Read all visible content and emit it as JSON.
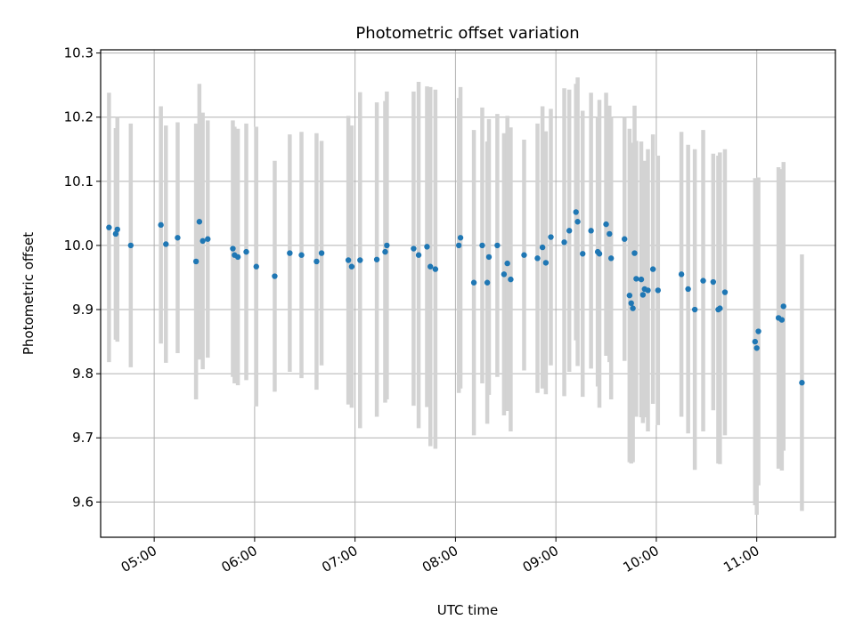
{
  "chart_data": {
    "type": "scatter",
    "title": "Photometric offset variation",
    "xlabel": "UTC time",
    "ylabel": "Photometric offset",
    "grid": true,
    "xlim": [
      "04:28",
      "11:47"
    ],
    "ylim": [
      9.545,
      10.305
    ],
    "xticks": [
      "05:00",
      "06:00",
      "07:00",
      "08:00",
      "09:00",
      "10:00",
      "11:00"
    ],
    "yticks": [
      "9.6",
      "9.7",
      "9.8",
      "9.9",
      "10.0",
      "10.1",
      "10.2",
      "10.3"
    ],
    "colors": {
      "points": "#1f77b4",
      "error_bars": "#d3d3d3",
      "grid": "#b0b0b0"
    },
    "points": [
      {
        "t": "04:33",
        "y": 10.028,
        "err": 0.21
      },
      {
        "t": "04:37",
        "y": 10.018,
        "err": 0.165
      },
      {
        "t": "04:38",
        "y": 10.025,
        "err": 0.175
      },
      {
        "t": "04:46",
        "y": 10.0,
        "err": 0.19
      },
      {
        "t": "05:04",
        "y": 10.032,
        "err": 0.185
      },
      {
        "t": "05:07",
        "y": 10.002,
        "err": 0.185
      },
      {
        "t": "05:14",
        "y": 10.012,
        "err": 0.18
      },
      {
        "t": "05:25",
        "y": 9.975,
        "err": 0.215
      },
      {
        "t": "05:27",
        "y": 10.037,
        "err": 0.215
      },
      {
        "t": "05:29",
        "y": 10.007,
        "err": 0.2
      },
      {
        "t": "05:32",
        "y": 10.01,
        "err": 0.185
      },
      {
        "t": "05:47",
        "y": 9.995,
        "err": 0.2
      },
      {
        "t": "05:48",
        "y": 9.985,
        "err": 0.2
      },
      {
        "t": "05:50",
        "y": 9.982,
        "err": 0.2
      },
      {
        "t": "05:55",
        "y": 9.99,
        "err": 0.2
      },
      {
        "t": "06:01",
        "y": 9.967,
        "err": 0.218
      },
      {
        "t": "06:12",
        "y": 9.952,
        "err": 0.18
      },
      {
        "t": "06:21",
        "y": 9.988,
        "err": 0.185
      },
      {
        "t": "06:28",
        "y": 9.985,
        "err": 0.192
      },
      {
        "t": "06:37",
        "y": 9.975,
        "err": 0.2
      },
      {
        "t": "06:40",
        "y": 9.988,
        "err": 0.175
      },
      {
        "t": "06:56",
        "y": 9.977,
        "err": 0.225
      },
      {
        "t": "06:58",
        "y": 9.967,
        "err": 0.22
      },
      {
        "t": "07:03",
        "y": 9.977,
        "err": 0.262
      },
      {
        "t": "07:13",
        "y": 9.978,
        "err": 0.245
      },
      {
        "t": "07:18",
        "y": 9.99,
        "err": 0.235
      },
      {
        "t": "07:19",
        "y": 10.0,
        "err": 0.24
      },
      {
        "t": "07:35",
        "y": 9.995,
        "err": 0.245
      },
      {
        "t": "07:38",
        "y": 9.985,
        "err": 0.27
      },
      {
        "t": "07:43",
        "y": 9.998,
        "err": 0.25
      },
      {
        "t": "07:45",
        "y": 9.967,
        "err": 0.28
      },
      {
        "t": "07:48",
        "y": 9.963,
        "err": 0.28
      },
      {
        "t": "08:02",
        "y": 10.0,
        "err": 0.23
      },
      {
        "t": "08:03",
        "y": 10.012,
        "err": 0.235
      },
      {
        "t": "08:11",
        "y": 9.942,
        "err": 0.238
      },
      {
        "t": "08:16",
        "y": 10.0,
        "err": 0.215
      },
      {
        "t": "08:19",
        "y": 9.942,
        "err": 0.22
      },
      {
        "t": "08:20",
        "y": 9.982,
        "err": 0.215
      },
      {
        "t": "08:25",
        "y": 10.0,
        "err": 0.205
      },
      {
        "t": "08:29",
        "y": 9.955,
        "err": 0.22
      },
      {
        "t": "08:31",
        "y": 9.972,
        "err": 0.23
      },
      {
        "t": "08:33",
        "y": 9.947,
        "err": 0.237
      },
      {
        "t": "08:41",
        "y": 9.985,
        "err": 0.18
      },
      {
        "t": "08:49",
        "y": 9.98,
        "err": 0.21
      },
      {
        "t": "08:52",
        "y": 9.997,
        "err": 0.22
      },
      {
        "t": "08:54",
        "y": 9.973,
        "err": 0.205
      },
      {
        "t": "08:57",
        "y": 10.013,
        "err": 0.2
      },
      {
        "t": "09:05",
        "y": 10.005,
        "err": 0.24
      },
      {
        "t": "09:08",
        "y": 10.023,
        "err": 0.22
      },
      {
        "t": "09:12",
        "y": 10.052,
        "err": 0.2
      },
      {
        "t": "09:13",
        "y": 10.037,
        "err": 0.225
      },
      {
        "t": "09:16",
        "y": 9.987,
        "err": 0.223
      },
      {
        "t": "09:21",
        "y": 10.023,
        "err": 0.215
      },
      {
        "t": "09:25",
        "y": 9.99,
        "err": 0.21
      },
      {
        "t": "09:26",
        "y": 9.987,
        "err": 0.24
      },
      {
        "t": "09:30",
        "y": 10.033,
        "err": 0.205
      },
      {
        "t": "09:32",
        "y": 10.018,
        "err": 0.2
      },
      {
        "t": "09:33",
        "y": 9.98,
        "err": 0.22
      },
      {
        "t": "09:41",
        "y": 10.01,
        "err": 0.19
      },
      {
        "t": "09:44",
        "y": 9.922,
        "err": 0.26
      },
      {
        "t": "09:45",
        "y": 9.91,
        "err": 0.25
      },
      {
        "t": "09:46",
        "y": 9.902,
        "err": 0.24
      },
      {
        "t": "09:47",
        "y": 9.988,
        "err": 0.23
      },
      {
        "t": "09:48",
        "y": 9.948,
        "err": 0.215
      },
      {
        "t": "09:51",
        "y": 9.947,
        "err": 0.215
      },
      {
        "t": "09:52",
        "y": 9.923,
        "err": 0.2
      },
      {
        "t": "09:53",
        "y": 9.932,
        "err": 0.2
      },
      {
        "t": "09:55",
        "y": 9.93,
        "err": 0.22
      },
      {
        "t": "09:58",
        "y": 9.963,
        "err": 0.21
      },
      {
        "t": "10:01",
        "y": 9.93,
        "err": 0.21
      },
      {
        "t": "10:15",
        "y": 9.955,
        "err": 0.222
      },
      {
        "t": "10:19",
        "y": 9.932,
        "err": 0.225
      },
      {
        "t": "10:23",
        "y": 9.9,
        "err": 0.25
      },
      {
        "t": "10:28",
        "y": 9.945,
        "err": 0.235
      },
      {
        "t": "10:34",
        "y": 9.943,
        "err": 0.2
      },
      {
        "t": "10:37",
        "y": 9.9,
        "err": 0.24
      },
      {
        "t": "10:38",
        "y": 9.902,
        "err": 0.243
      },
      {
        "t": "10:41",
        "y": 9.927,
        "err": 0.223
      },
      {
        "t": "10:59",
        "y": 9.85,
        "err": 0.255
      },
      {
        "t": "11:00",
        "y": 9.84,
        "err": 0.26
      },
      {
        "t": "11:01",
        "y": 9.866,
        "err": 0.24
      },
      {
        "t": "11:13",
        "y": 9.887,
        "err": 0.235
      },
      {
        "t": "11:15",
        "y": 9.884,
        "err": 0.235
      },
      {
        "t": "11:16",
        "y": 9.905,
        "err": 0.225
      },
      {
        "t": "11:27",
        "y": 9.786,
        "err": 0.2
      }
    ]
  }
}
